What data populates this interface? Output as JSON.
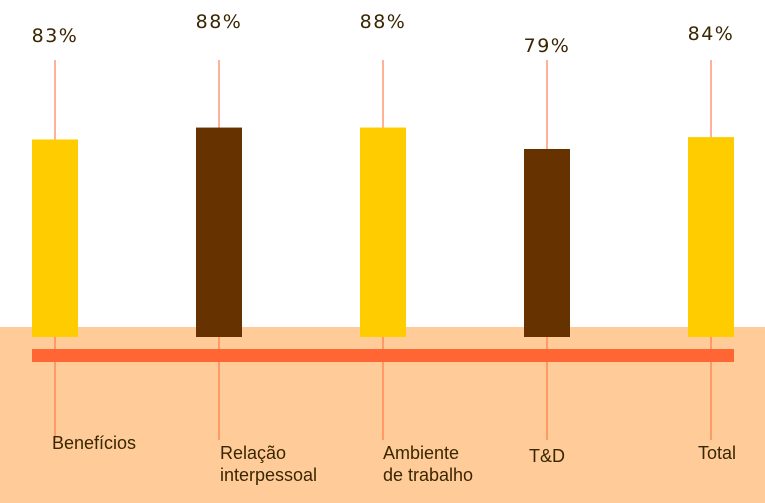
{
  "chart_data": {
    "type": "bar",
    "categories": [
      "Benefícios",
      "Relação\ninterpessoal",
      "Ambiente\nde trabalho",
      "T&D",
      "Total"
    ],
    "values": [
      83,
      88,
      88,
      79,
      84
    ],
    "value_labels": [
      "83%",
      "88%",
      "88%",
      "79%",
      "84%"
    ],
    "bar_colors": [
      "#ffcc00",
      "#663300",
      "#ffcc00",
      "#663300",
      "#ffcc00"
    ],
    "baseline_color": "#ff6633",
    "band_color": "#ffcc99",
    "leader_line_color": "#ff6633",
    "ylim": [
      0,
      100
    ],
    "grid": false,
    "legend": "none"
  }
}
